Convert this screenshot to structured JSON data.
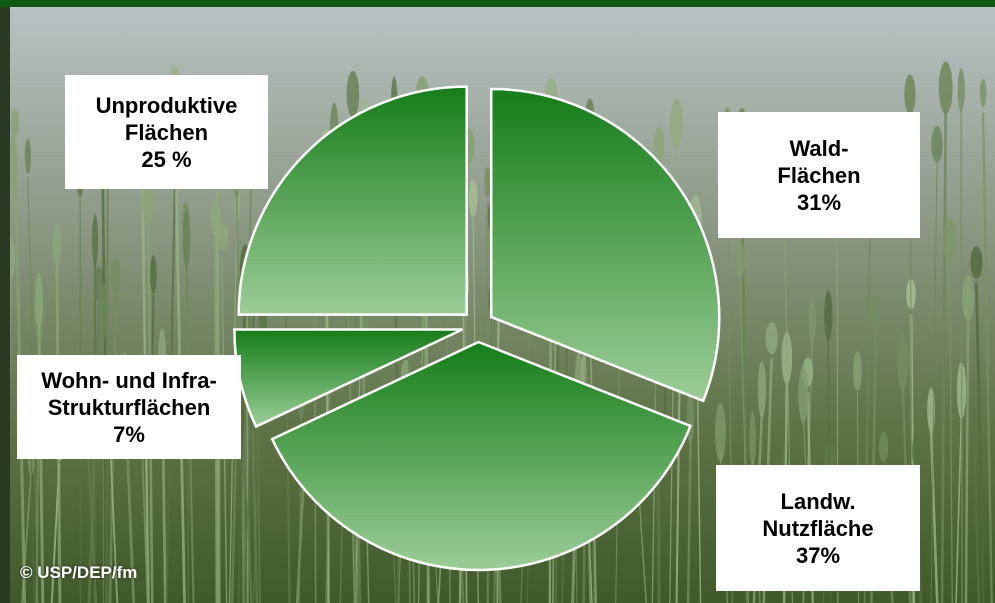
{
  "chart_data": {
    "type": "pie",
    "slices": [
      {
        "label_lines": [
          "Wald-",
          "Flächen",
          "31%"
        ],
        "value": 31
      },
      {
        "label_lines": [
          "Landw.",
          "Nutzfläche",
          "37%"
        ],
        "value": 37
      },
      {
        "label_lines": [
          "Wohn- und Infra-",
          "Strukturflächen",
          "7%"
        ],
        "value": 7
      },
      {
        "label_lines": [
          "Unproduktive",
          "Flächen",
          "25 %"
        ],
        "value": 25
      }
    ],
    "style": "exploded",
    "colors": {
      "slice_dark": "#157d18",
      "slice_light": "#9ccd98",
      "edge": "#ffffff"
    }
  },
  "credit": "© USP/DEP/fm",
  "colors": {
    "top_bar": "#0f5a12"
  }
}
